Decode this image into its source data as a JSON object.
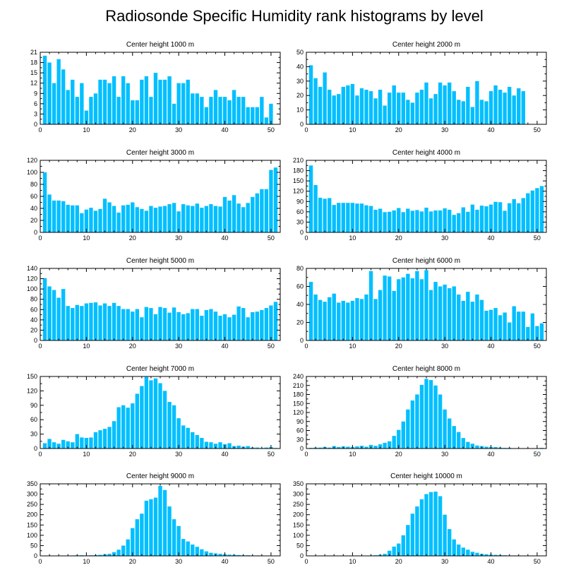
{
  "figure": {
    "title": "Radiosonde Specific Humidity rank histograms by level",
    "bar_color": "#00bfff",
    "frame_color": "#000000"
  },
  "chart_data": [
    {
      "type": "bar",
      "title": "Center height 1000 m",
      "xlim": [
        0,
        52
      ],
      "xticks": [
        0,
        10,
        20,
        30,
        40,
        50
      ],
      "ylim": [
        0,
        21
      ],
      "yticks": [
        0,
        3,
        6,
        9,
        12,
        15,
        18,
        21
      ],
      "x": [
        1,
        2,
        3,
        4,
        5,
        6,
        7,
        8,
        9,
        10,
        11,
        12,
        13,
        14,
        15,
        16,
        17,
        18,
        19,
        20,
        21,
        22,
        23,
        24,
        25,
        26,
        27,
        28,
        29,
        30,
        31,
        32,
        33,
        34,
        35,
        36,
        37,
        38,
        39,
        40,
        41,
        42,
        43,
        44,
        45,
        46,
        47,
        48,
        49,
        50,
        51
      ],
      "values": [
        20,
        18,
        12,
        19,
        16,
        10,
        13,
        8,
        12,
        4,
        8,
        9,
        13,
        13,
        12,
        14,
        8,
        14,
        12,
        7,
        7,
        13,
        14,
        8,
        15,
        13,
        13,
        14,
        6,
        12,
        12,
        13,
        9,
        9,
        8,
        5,
        8,
        10,
        8,
        8,
        7,
        10,
        8,
        8,
        5,
        5,
        5,
        8,
        2,
        6,
        0
      ]
    },
    {
      "type": "bar",
      "title": "Center height 2000 m",
      "xlim": [
        0,
        52
      ],
      "xticks": [
        0,
        10,
        20,
        30,
        40,
        50
      ],
      "ylim": [
        0,
        50
      ],
      "yticks": [
        0,
        10,
        20,
        30,
        40,
        50
      ],
      "x": [
        1,
        2,
        3,
        4,
        5,
        6,
        7,
        8,
        9,
        10,
        11,
        12,
        13,
        14,
        15,
        16,
        17,
        18,
        19,
        20,
        21,
        22,
        23,
        24,
        25,
        26,
        27,
        28,
        29,
        30,
        31,
        32,
        33,
        34,
        35,
        36,
        37,
        38,
        39,
        40,
        41,
        42,
        43,
        44,
        45,
        46,
        47,
        48,
        49,
        50,
        51
      ],
      "values": [
        41,
        32,
        26,
        36,
        24,
        20,
        21,
        26,
        27,
        28,
        20,
        25,
        24,
        23,
        18,
        24,
        13,
        22,
        27,
        22,
        22,
        17,
        15,
        22,
        24,
        29,
        18,
        21,
        29,
        27,
        29,
        23,
        17,
        16,
        26,
        12,
        30,
        17,
        16,
        23,
        27,
        24,
        22,
        26,
        20,
        25,
        23,
        0,
        0,
        0,
        0
      ]
    },
    {
      "type": "bar",
      "title": "Center height 3000 m",
      "xlim": [
        0,
        52
      ],
      "xticks": [
        0,
        10,
        20,
        30,
        40,
        50
      ],
      "ylim": [
        0,
        120
      ],
      "yticks": [
        0,
        20,
        40,
        60,
        80,
        100,
        120
      ],
      "x": [
        1,
        2,
        3,
        4,
        5,
        6,
        7,
        8,
        9,
        10,
        11,
        12,
        13,
        14,
        15,
        16,
        17,
        18,
        19,
        20,
        21,
        22,
        23,
        24,
        25,
        26,
        27,
        28,
        29,
        30,
        31,
        32,
        33,
        34,
        35,
        36,
        37,
        38,
        39,
        40,
        41,
        42,
        43,
        44,
        45,
        46,
        47,
        48,
        49,
        50,
        51
      ],
      "values": [
        100,
        63,
        53,
        53,
        52,
        46,
        45,
        45,
        32,
        38,
        41,
        36,
        39,
        56,
        50,
        44,
        33,
        45,
        46,
        50,
        42,
        39,
        36,
        44,
        41,
        43,
        44,
        47,
        49,
        35,
        47,
        45,
        44,
        48,
        41,
        44,
        47,
        44,
        43,
        59,
        53,
        62,
        48,
        42,
        49,
        59,
        65,
        72,
        72,
        104,
        108
      ]
    },
    {
      "type": "bar",
      "title": "Center height 4000 m",
      "xlim": [
        0,
        52
      ],
      "xticks": [
        0,
        10,
        20,
        30,
        40,
        50
      ],
      "ylim": [
        0,
        210
      ],
      "yticks": [
        0,
        30,
        60,
        90,
        120,
        150,
        180,
        210
      ],
      "x": [
        1,
        2,
        3,
        4,
        5,
        6,
        7,
        8,
        9,
        10,
        11,
        12,
        13,
        14,
        15,
        16,
        17,
        18,
        19,
        20,
        21,
        22,
        23,
        24,
        25,
        26,
        27,
        28,
        29,
        30,
        31,
        32,
        33,
        34,
        35,
        36,
        37,
        38,
        39,
        40,
        41,
        42,
        43,
        44,
        45,
        46,
        47,
        48,
        49,
        50,
        51
      ],
      "values": [
        195,
        138,
        101,
        98,
        100,
        80,
        86,
        86,
        86,
        86,
        84,
        84,
        79,
        77,
        66,
        69,
        59,
        60,
        64,
        71,
        59,
        69,
        63,
        65,
        61,
        72,
        61,
        64,
        64,
        70,
        66,
        51,
        56,
        73,
        60,
        81,
        66,
        78,
        76,
        81,
        89,
        88,
        63,
        85,
        97,
        85,
        100,
        114,
        122,
        129,
        135
      ]
    },
    {
      "type": "bar",
      "title": "Center height 5000 m",
      "xlim": [
        0,
        52
      ],
      "xticks": [
        0,
        10,
        20,
        30,
        40,
        50
      ],
      "ylim": [
        0,
        140
      ],
      "yticks": [
        0,
        20,
        40,
        60,
        80,
        100,
        120,
        140
      ],
      "x": [
        1,
        2,
        3,
        4,
        5,
        6,
        7,
        8,
        9,
        10,
        11,
        12,
        13,
        14,
        15,
        16,
        17,
        18,
        19,
        20,
        21,
        22,
        23,
        24,
        25,
        26,
        27,
        28,
        29,
        30,
        31,
        32,
        33,
        34,
        35,
        36,
        37,
        38,
        39,
        40,
        41,
        42,
        43,
        44,
        45,
        46,
        47,
        48,
        49,
        50,
        51
      ],
      "values": [
        121,
        105,
        98,
        83,
        100,
        67,
        63,
        69,
        67,
        72,
        73,
        74,
        68,
        72,
        67,
        73,
        67,
        61,
        61,
        56,
        61,
        45,
        65,
        63,
        51,
        65,
        63,
        54,
        64,
        55,
        51,
        53,
        61,
        61,
        48,
        59,
        61,
        56,
        48,
        51,
        45,
        50,
        66,
        63,
        45,
        55,
        56,
        59,
        63,
        68,
        75
      ]
    },
    {
      "type": "bar",
      "title": "Center height 6000 m",
      "xlim": [
        0,
        52
      ],
      "xticks": [
        0,
        10,
        20,
        30,
        40,
        50
      ],
      "ylim": [
        0,
        80
      ],
      "yticks": [
        0,
        20,
        40,
        60,
        80
      ],
      "x": [
        1,
        2,
        3,
        4,
        5,
        6,
        7,
        8,
        9,
        10,
        11,
        12,
        13,
        14,
        15,
        16,
        17,
        18,
        19,
        20,
        21,
        22,
        23,
        24,
        25,
        26,
        27,
        28,
        29,
        30,
        31,
        32,
        33,
        34,
        35,
        36,
        37,
        38,
        39,
        40,
        41,
        42,
        43,
        44,
        45,
        46,
        47,
        48,
        49,
        50,
        51
      ],
      "values": [
        65,
        51,
        45,
        43,
        48,
        52,
        42,
        44,
        42,
        44,
        47,
        46,
        51,
        77,
        46,
        56,
        72,
        71,
        55,
        68,
        70,
        74,
        69,
        77,
        68,
        78,
        56,
        65,
        60,
        62,
        58,
        60,
        51,
        44,
        54,
        43,
        51,
        45,
        33,
        34,
        36,
        28,
        31,
        20,
        38,
        32,
        32,
        15,
        30,
        16,
        19
      ]
    },
    {
      "type": "bar",
      "title": "Center height 7000 m",
      "xlim": [
        0,
        52
      ],
      "xticks": [
        0,
        10,
        20,
        30,
        40,
        50
      ],
      "ylim": [
        0,
        150
      ],
      "yticks": [
        0,
        30,
        60,
        90,
        120,
        150
      ],
      "x": [
        1,
        2,
        3,
        4,
        5,
        6,
        7,
        8,
        9,
        10,
        11,
        12,
        13,
        14,
        15,
        16,
        17,
        18,
        19,
        20,
        21,
        22,
        23,
        24,
        25,
        26,
        27,
        28,
        29,
        30,
        31,
        32,
        33,
        34,
        35,
        36,
        37,
        38,
        39,
        40,
        41,
        42,
        43,
        44,
        45,
        46,
        47,
        48,
        49,
        50,
        51
      ],
      "values": [
        11,
        20,
        13,
        10,
        18,
        15,
        13,
        30,
        23,
        22,
        23,
        34,
        38,
        41,
        45,
        57,
        86,
        90,
        85,
        94,
        114,
        130,
        149,
        142,
        146,
        136,
        120,
        97,
        90,
        63,
        48,
        43,
        34,
        28,
        22,
        14,
        13,
        10,
        13,
        9,
        11,
        5,
        6,
        4,
        5,
        2,
        2,
        1,
        2,
        3,
        1
      ]
    },
    {
      "type": "bar",
      "title": "Center height 8000 m",
      "xlim": [
        0,
        52
      ],
      "xticks": [
        0,
        10,
        20,
        30,
        40,
        50
      ],
      "ylim": [
        0,
        240
      ],
      "yticks": [
        0,
        30,
        60,
        90,
        120,
        150,
        180,
        210,
        240
      ],
      "x": [
        1,
        2,
        3,
        4,
        5,
        6,
        7,
        8,
        9,
        10,
        11,
        12,
        13,
        14,
        15,
        16,
        17,
        18,
        19,
        20,
        21,
        22,
        23,
        24,
        25,
        26,
        27,
        28,
        29,
        30,
        31,
        32,
        33,
        34,
        35,
        36,
        37,
        38,
        39,
        40,
        41,
        42,
        43,
        44,
        45,
        46,
        47,
        48,
        49,
        50,
        51
      ],
      "values": [
        2,
        3,
        3,
        5,
        3,
        8,
        5,
        7,
        6,
        5,
        7,
        9,
        6,
        12,
        9,
        14,
        19,
        24,
        42,
        62,
        90,
        130,
        160,
        180,
        212,
        232,
        228,
        210,
        180,
        130,
        100,
        75,
        55,
        35,
        22,
        16,
        10,
        8,
        6,
        5,
        5,
        3,
        2,
        2,
        1,
        1,
        1,
        1,
        0,
        0,
        2
      ]
    },
    {
      "type": "bar",
      "title": "Center height 9000 m",
      "xlim": [
        0,
        52
      ],
      "xticks": [
        0,
        10,
        20,
        30,
        40,
        50
      ],
      "ylim": [
        0,
        350
      ],
      "yticks": [
        0,
        50,
        100,
        150,
        200,
        250,
        300,
        350
      ],
      "x": [
        1,
        2,
        3,
        4,
        5,
        6,
        7,
        8,
        9,
        10,
        11,
        12,
        13,
        14,
        15,
        16,
        17,
        18,
        19,
        20,
        21,
        22,
        23,
        24,
        25,
        26,
        27,
        28,
        29,
        30,
        31,
        32,
        33,
        34,
        35,
        36,
        37,
        38,
        39,
        40,
        41,
        42,
        43,
        44,
        45,
        46,
        47,
        48,
        49,
        50,
        51
      ],
      "values": [
        0,
        0,
        0,
        0,
        1,
        1,
        2,
        3,
        3,
        2,
        3,
        4,
        5,
        8,
        10,
        18,
        30,
        50,
        80,
        135,
        178,
        205,
        268,
        275,
        283,
        340,
        320,
        240,
        178,
        145,
        82,
        70,
        55,
        44,
        32,
        22,
        15,
        12,
        10,
        8,
        6,
        5,
        4,
        3,
        3,
        2,
        2,
        2,
        1,
        1,
        1
      ]
    },
    {
      "type": "bar",
      "title": "Center height 10000 m",
      "xlim": [
        0,
        52
      ],
      "xticks": [
        0,
        10,
        20,
        30,
        40,
        50
      ],
      "ylim": [
        0,
        350
      ],
      "yticks": [
        0,
        50,
        100,
        150,
        200,
        250,
        300,
        350
      ],
      "x": [
        1,
        2,
        3,
        4,
        5,
        6,
        7,
        8,
        9,
        10,
        11,
        12,
        13,
        14,
        15,
        16,
        17,
        18,
        19,
        20,
        21,
        22,
        23,
        24,
        25,
        26,
        27,
        28,
        29,
        30,
        31,
        32,
        33,
        34,
        35,
        36,
        37,
        38,
        39,
        40,
        41,
        42,
        43,
        44,
        45,
        46,
        47,
        48,
        49,
        50,
        51
      ],
      "values": [
        0,
        0,
        0,
        0,
        0,
        0,
        0,
        0,
        0,
        0,
        1,
        1,
        1,
        2,
        3,
        5,
        10,
        25,
        45,
        60,
        100,
        150,
        205,
        240,
        275,
        300,
        310,
        312,
        290,
        200,
        130,
        80,
        55,
        40,
        30,
        20,
        15,
        10,
        8,
        6,
        5,
        4,
        3,
        2,
        2,
        2,
        1,
        1,
        1,
        0,
        0
      ]
    }
  ]
}
